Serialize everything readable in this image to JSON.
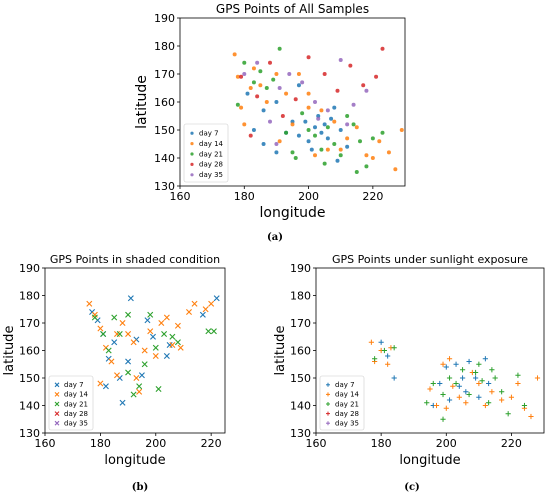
{
  "colors": {
    "day 7": "#1f77b4",
    "day 14": "#ff7f0e",
    "day 21": "#2ca02c",
    "day 28": "#d62728",
    "day 35": "#9467bd"
  },
  "captions": [
    "(a)",
    "(b)",
    "(c)"
  ],
  "chart_data": [
    {
      "type": "scatter",
      "title": "GPS Points of All Samples",
      "xlabel": "longitude",
      "ylabel": "latitude",
      "xlim": [
        160,
        230
      ],
      "ylim": [
        130,
        190
      ],
      "xticks": [
        "160",
        "180",
        "200",
        "220"
      ],
      "yticks": [
        "130",
        "140",
        "150",
        "160",
        "170",
        "180",
        "190"
      ],
      "marker": "o",
      "legend_position": "lower-left",
      "series": [
        {
          "name": "day 7",
          "points": [
            [
              181,
              163
            ],
            [
              183,
              150
            ],
            [
              186,
              145
            ],
            [
              190,
              142
            ],
            [
              193,
              149
            ],
            [
              195,
              153
            ],
            [
              197,
              148
            ],
            [
              199,
              153
            ],
            [
              200,
              146
            ],
            [
              202,
              151
            ],
            [
              203,
              155
            ],
            [
              204,
              149
            ],
            [
              205,
              152
            ],
            [
              206,
              147
            ],
            [
              207,
              154
            ],
            [
              208,
              158
            ],
            [
              210,
              150
            ],
            [
              212,
              144
            ],
            [
              197,
              166
            ],
            [
              186,
              157
            ],
            [
              190,
              160
            ],
            [
              201,
              143
            ],
            [
              209,
              139
            ]
          ]
        },
        {
          "name": "day 14",
          "points": [
            [
              177,
              177
            ],
            [
              178,
              169
            ],
            [
              179,
              158
            ],
            [
              180,
              152
            ],
            [
              182,
              165
            ],
            [
              183,
              172
            ],
            [
              185,
              166
            ],
            [
              187,
              160
            ],
            [
              190,
              170
            ],
            [
              191,
              146
            ],
            [
              193,
              163
            ],
            [
              195,
              152
            ],
            [
              197,
              170
            ],
            [
              200,
              158
            ],
            [
              202,
              141
            ],
            [
              204,
              157
            ],
            [
              206,
              143
            ],
            [
              208,
              153
            ],
            [
              210,
              143
            ],
            [
              212,
              147
            ],
            [
              215,
              151
            ],
            [
              218,
              141
            ],
            [
              220,
              140
            ],
            [
              222,
              146
            ],
            [
              225,
              142
            ],
            [
              227,
              136
            ],
            [
              229,
              150
            ],
            [
              200,
              163
            ]
          ]
        },
        {
          "name": "day 21",
          "points": [
            [
              178,
              159
            ],
            [
              180,
              174
            ],
            [
              183,
              167
            ],
            [
              185,
              171
            ],
            [
              187,
              165
            ],
            [
              189,
              168
            ],
            [
              191,
              179
            ],
            [
              193,
              149
            ],
            [
              195,
              142
            ],
            [
              198,
              156
            ],
            [
              200,
              150
            ],
            [
              202,
              148
            ],
            [
              204,
              143
            ],
            [
              206,
              151
            ],
            [
              208,
              145
            ],
            [
              210,
              141
            ],
            [
              212,
              155
            ],
            [
              214,
              152
            ],
            [
              216,
              146
            ],
            [
              218,
              137
            ],
            [
              220,
              147
            ],
            [
              223,
              149
            ],
            [
              196,
              140
            ],
            [
              205,
              138
            ],
            [
              215,
              135
            ]
          ]
        },
        {
          "name": "day 28",
          "points": [
            [
              179,
              169
            ],
            [
              184,
              162
            ],
            [
              188,
              174
            ],
            [
              192,
              155
            ],
            [
              196,
              161
            ],
            [
              200,
              176
            ],
            [
              205,
              170
            ],
            [
              209,
              164
            ],
            [
              213,
              173
            ],
            [
              217,
              166
            ],
            [
              221,
              169
            ],
            [
              223,
              179
            ],
            [
              182,
              148
            ]
          ]
        },
        {
          "name": "day 35",
          "points": [
            [
              180,
              170
            ],
            [
              184,
              174
            ],
            [
              188,
              153
            ],
            [
              191,
              165
            ],
            [
              194,
              170
            ],
            [
              198,
              167
            ],
            [
              202,
              160
            ],
            [
              206,
              157
            ],
            [
              210,
              175
            ],
            [
              214,
              159
            ],
            [
              218,
              164
            ],
            [
              190,
              145
            ],
            [
              203,
              154
            ],
            [
              212,
              152
            ]
          ]
        }
      ]
    },
    {
      "type": "scatter",
      "title": "GPS Points in shaded condition",
      "xlabel": "longitude",
      "ylabel": "latitude",
      "xlim": [
        160,
        225
      ],
      "ylim": [
        130,
        190
      ],
      "xticks": [
        "160",
        "180",
        "200",
        "220"
      ],
      "yticks": [
        "130",
        "140",
        "150",
        "160",
        "170",
        "180",
        "190"
      ],
      "marker": "x",
      "legend_position": "lower-left",
      "series": [
        {
          "name": "day 7",
          "points": [
            [
              177,
              174
            ],
            [
              179,
              171
            ],
            [
              181,
              166
            ],
            [
              183,
              157
            ],
            [
              185,
              163
            ],
            [
              187,
              150
            ],
            [
              188,
              141
            ],
            [
              190,
              156
            ],
            [
              191,
              179
            ],
            [
              193,
              164
            ],
            [
              195,
              151
            ],
            [
              197,
              171
            ],
            [
              199,
              165
            ],
            [
              204,
              158
            ],
            [
              205,
              162
            ],
            [
              217,
              173
            ],
            [
              222,
              179
            ],
            [
              182,
              147
            ]
          ]
        },
        {
          "name": "day 14",
          "points": [
            [
              176,
              177
            ],
            [
              178,
              173
            ],
            [
              180,
              168
            ],
            [
              182,
              161
            ],
            [
              184,
              156
            ],
            [
              186,
              151
            ],
            [
              188,
              170
            ],
            [
              190,
              166
            ],
            [
              192,
              163
            ],
            [
              193,
              150
            ],
            [
              194,
              145
            ],
            [
              196,
              160
            ],
            [
              198,
              167
            ],
            [
              200,
              158
            ],
            [
              202,
              170
            ],
            [
              204,
              172
            ],
            [
              206,
              162
            ],
            [
              208,
              169
            ],
            [
              209,
              161
            ],
            [
              212,
              174
            ],
            [
              214,
              177
            ],
            [
              218,
              175
            ],
            [
              220,
              177
            ],
            [
              180,
              148
            ],
            [
              186,
              166
            ]
          ]
        },
        {
          "name": "day 21",
          "points": [
            [
              178,
              172
            ],
            [
              181,
              166
            ],
            [
              183,
              160
            ],
            [
              185,
              172
            ],
            [
              187,
              166
            ],
            [
              190,
              173
            ],
            [
              192,
              144
            ],
            [
              194,
              147
            ],
            [
              196,
              155
            ],
            [
              198,
              173
            ],
            [
              200,
              161
            ],
            [
              201,
              146
            ],
            [
              203,
              166
            ],
            [
              206,
              165
            ],
            [
              208,
              163
            ],
            [
              219,
              167
            ],
            [
              221,
              167
            ],
            [
              190,
              152
            ]
          ]
        },
        {
          "name": "day 28",
          "points": []
        },
        {
          "name": "day 35",
          "points": []
        }
      ]
    },
    {
      "type": "scatter",
      "title": "GPS Points under sunlight exposure",
      "xlabel": "longitude",
      "ylabel": "latitude",
      "xlim": [
        160,
        230
      ],
      "ylim": [
        130,
        190
      ],
      "xticks": [
        "160",
        "180",
        "200",
        "220"
      ],
      "yticks": [
        "130",
        "140",
        "150",
        "160",
        "170",
        "180",
        "190"
      ],
      "marker": "+",
      "legend_position": "lower-left",
      "series": [
        {
          "name": "day 7",
          "points": [
            [
              180,
              163
            ],
            [
              182,
              158
            ],
            [
              184,
              150
            ],
            [
              198,
              148
            ],
            [
              200,
              154
            ],
            [
              201,
              142
            ],
            [
              203,
              155
            ],
            [
              205,
              150
            ],
            [
              206,
              145
            ],
            [
              207,
              156
            ],
            [
              209,
              150
            ],
            [
              210,
              143
            ],
            [
              212,
              157
            ],
            [
              213,
              148
            ],
            [
              196,
              140
            ],
            [
              204,
              147
            ]
          ]
        },
        {
          "name": "day 14",
          "points": [
            [
              177,
              163
            ],
            [
              178,
              156
            ],
            [
              180,
              160
            ],
            [
              182,
              155
            ],
            [
              183,
              161
            ],
            [
              195,
              146
            ],
            [
              197,
              140
            ],
            [
              199,
              155
            ],
            [
              201,
              157
            ],
            [
              202,
              147
            ],
            [
              204,
              143
            ],
            [
              206,
              141
            ],
            [
              208,
              152
            ],
            [
              210,
              148
            ],
            [
              212,
              140
            ],
            [
              214,
              145
            ],
            [
              217,
              142
            ],
            [
              220,
              143
            ],
            [
              222,
              148
            ],
            [
              224,
              139
            ],
            [
              226,
              136
            ],
            [
              228,
              150
            ],
            [
              200,
              139
            ]
          ]
        },
        {
          "name": "day 21",
          "points": [
            [
              178,
              157
            ],
            [
              181,
              160
            ],
            [
              184,
              161
            ],
            [
              194,
              141
            ],
            [
              196,
              148
            ],
            [
              199,
              144
            ],
            [
              201,
              150
            ],
            [
              203,
              148
            ],
            [
              205,
              153
            ],
            [
              207,
              144
            ],
            [
              209,
              152
            ],
            [
              211,
              149
            ],
            [
              213,
              141
            ],
            [
              215,
              150
            ],
            [
              217,
              145
            ],
            [
              219,
              137
            ],
            [
              222,
              151
            ],
            [
              224,
              140
            ],
            [
              199,
              135
            ],
            [
              210,
              155
            ],
            [
              214,
              153
            ]
          ]
        },
        {
          "name": "day 28",
          "points": []
        },
        {
          "name": "day 35",
          "points": []
        }
      ]
    }
  ]
}
